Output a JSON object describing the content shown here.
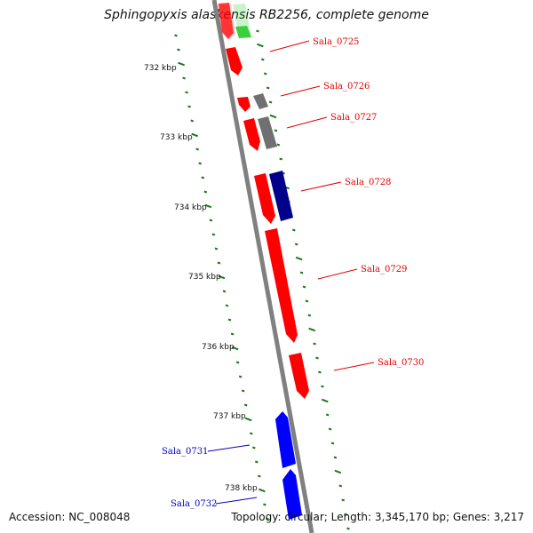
{
  "title": "Sphingopyxis alaskensis RB2256, complete genome",
  "accession_text": "Accession: NC_008048",
  "summary_text": "Topology: circular; Length: 3,345,170 bp; Genes: 3,217",
  "colors": {
    "backbone": "#808080",
    "forward_gene": "#ff0000",
    "reverse_gene": "#0000ff",
    "other_gene_gray": "#707070",
    "other_gene_navy": "#00008b",
    "faded_green": "#33cc33",
    "tick_green": "#1a7a1a"
  },
  "scale_labels": [
    "732 kbp",
    "733 kbp",
    "734 kbp",
    "735 kbp",
    "736 kbp",
    "737 kbp",
    "738 kbp"
  ],
  "gene_labels": [
    {
      "text": "Sala_0725",
      "color": "#e00000"
    },
    {
      "text": "Sala_0726",
      "color": "#e00000"
    },
    {
      "text": "Sala_0727",
      "color": "#e00000"
    },
    {
      "text": "Sala_0728",
      "color": "#e00000"
    },
    {
      "text": "Sala_0729",
      "color": "#e00000"
    },
    {
      "text": "Sala_0730",
      "color": "#e00000"
    },
    {
      "text": "Sala_0731",
      "color": "#0000c0"
    },
    {
      "text": "Sala_0732",
      "color": "#0000c0"
    }
  ]
}
